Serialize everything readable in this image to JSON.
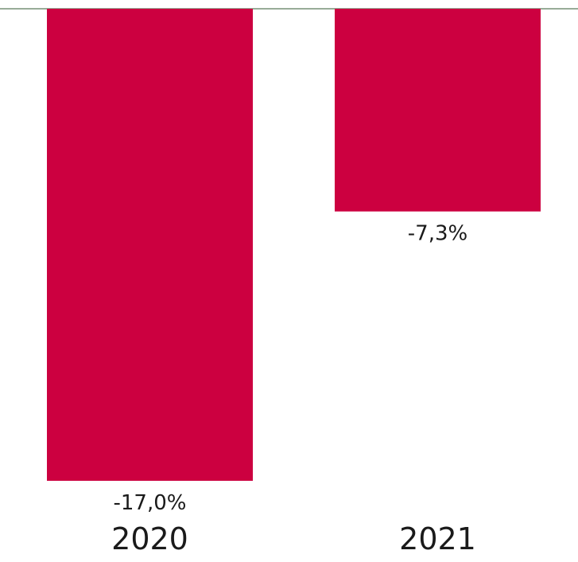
{
  "chart_data": {
    "type": "bar",
    "categories": [
      "2020",
      "2021"
    ],
    "values": [
      -17.0,
      -7.3
    ],
    "value_labels": [
      "-17,0%",
      "-7,3%"
    ],
    "title": "",
    "xlabel": "",
    "ylabel": "",
    "ylim": [
      -17.0,
      0
    ],
    "grid": false,
    "legend": "none",
    "bar_color": "#cc0040",
    "zero_line_color": "#5a7a5a"
  }
}
